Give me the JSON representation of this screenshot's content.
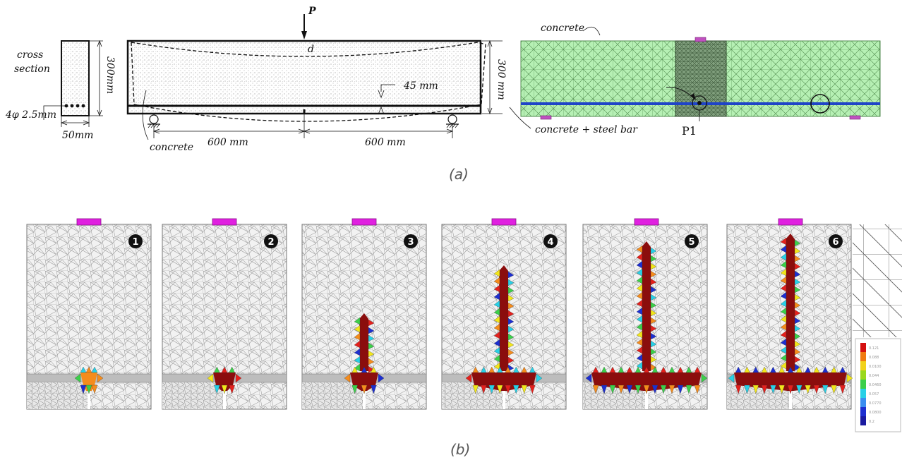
{
  "figure": {
    "caption_a": "(a)",
    "caption_b": "(b)"
  },
  "cross_section": {
    "title_line1": "cross",
    "title_line2": "section",
    "height": "300mm",
    "width": "50mm",
    "bars": "4φ 2.5mm"
  },
  "beam": {
    "load": "P",
    "deflection": "d",
    "cover": "45 mm",
    "height": "300 mm",
    "span_left": "600 mm",
    "span_right": "600 mm",
    "material": "concrete"
  },
  "mesh_model": {
    "label_top": "concrete",
    "label_bottom": "concrete + steel bar",
    "point": "P1",
    "colors": {
      "mesh_fill": "#b6f0b4",
      "mesh_line": "#4f8a4c",
      "steel": "#1f44c8",
      "support": "#c050c0"
    }
  },
  "crack_stages": {
    "badges": [
      "1",
      "2",
      "3",
      "4",
      "5",
      "6"
    ],
    "colors": {
      "crack": "#8b0d0d",
      "red": "#e4201c",
      "orange": "#f58c1c",
      "yellow": "#f2e61a",
      "green": "#3ccf4a",
      "cyan": "#28d0e6",
      "blue": "#1d2fd0",
      "pad": "#e020e0"
    }
  },
  "legend": {
    "values": [
      "0.121",
      "0.088",
      "0.0100",
      "0.044",
      "0.0460",
      "0.057",
      "0.0770",
      "0.0800",
      "0.2"
    ],
    "colors": [
      "#d41010",
      "#f07a10",
      "#f2d21a",
      "#9ad81c",
      "#3ccf4a",
      "#28d0e6",
      "#3a8ef0",
      "#1d2fd0",
      "#1a1aa0"
    ]
  }
}
